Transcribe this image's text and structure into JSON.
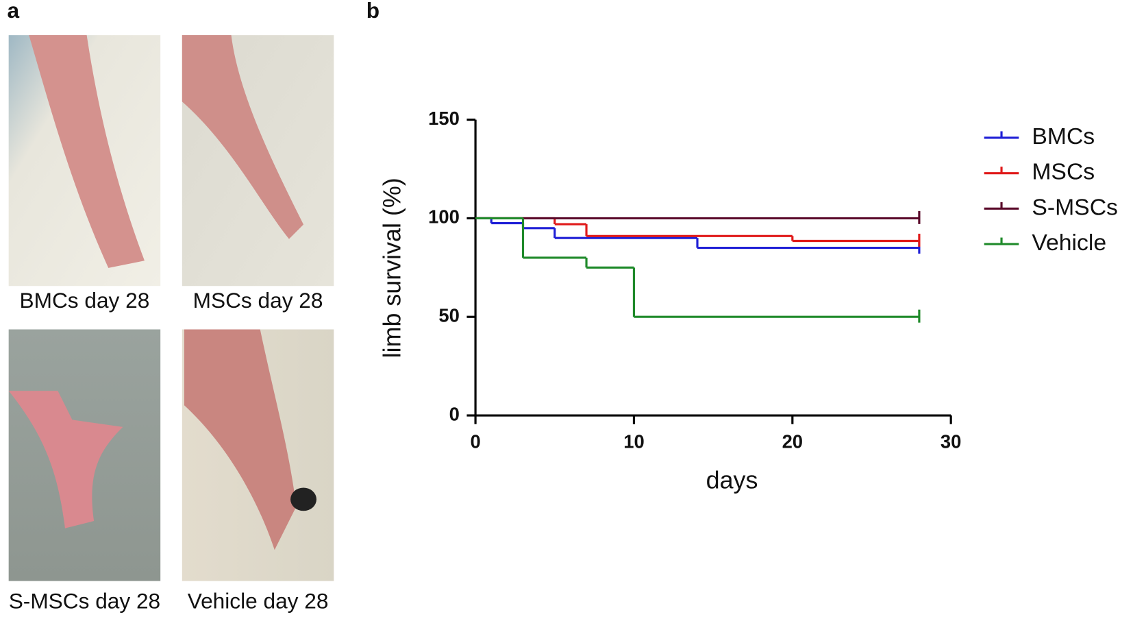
{
  "figure": {
    "panel_labels": [
      "a",
      "b"
    ],
    "photos": [
      {
        "caption": "BMCs day 28"
      },
      {
        "caption": "MSCs day 28"
      },
      {
        "caption": "S-MSCs day 28"
      },
      {
        "caption": "Vehicle day 28"
      }
    ]
  },
  "chart_data": {
    "type": "step",
    "y_label": "limb survival (%)",
    "x_label": "days",
    "xlim": [
      0,
      30
    ],
    "xticks": [
      0,
      10,
      20,
      30
    ],
    "ylim": [
      0,
      150
    ],
    "yticks": [
      0,
      50,
      100,
      150
    ],
    "series": [
      {
        "name": "BMCs",
        "color": "#1f1fd6",
        "x": [
          0,
          1,
          3,
          5,
          14,
          28
        ],
        "values": [
          100,
          97.5,
          95,
          90,
          85,
          85
        ]
      },
      {
        "name": "MSCs",
        "color": "#e01a1a",
        "x": [
          0,
          5,
          7,
          20,
          28
        ],
        "values": [
          100,
          97,
          91,
          88.5,
          88.5
        ]
      },
      {
        "name": "S-MSCs",
        "color": "#5a0a2a",
        "x": [
          0,
          28
        ],
        "values": [
          100,
          100
        ]
      },
      {
        "name": "Vehicle",
        "color": "#1f8a2a",
        "x": [
          0,
          3,
          7,
          10,
          28
        ],
        "values": [
          100,
          80,
          75,
          50,
          50
        ]
      }
    ]
  }
}
